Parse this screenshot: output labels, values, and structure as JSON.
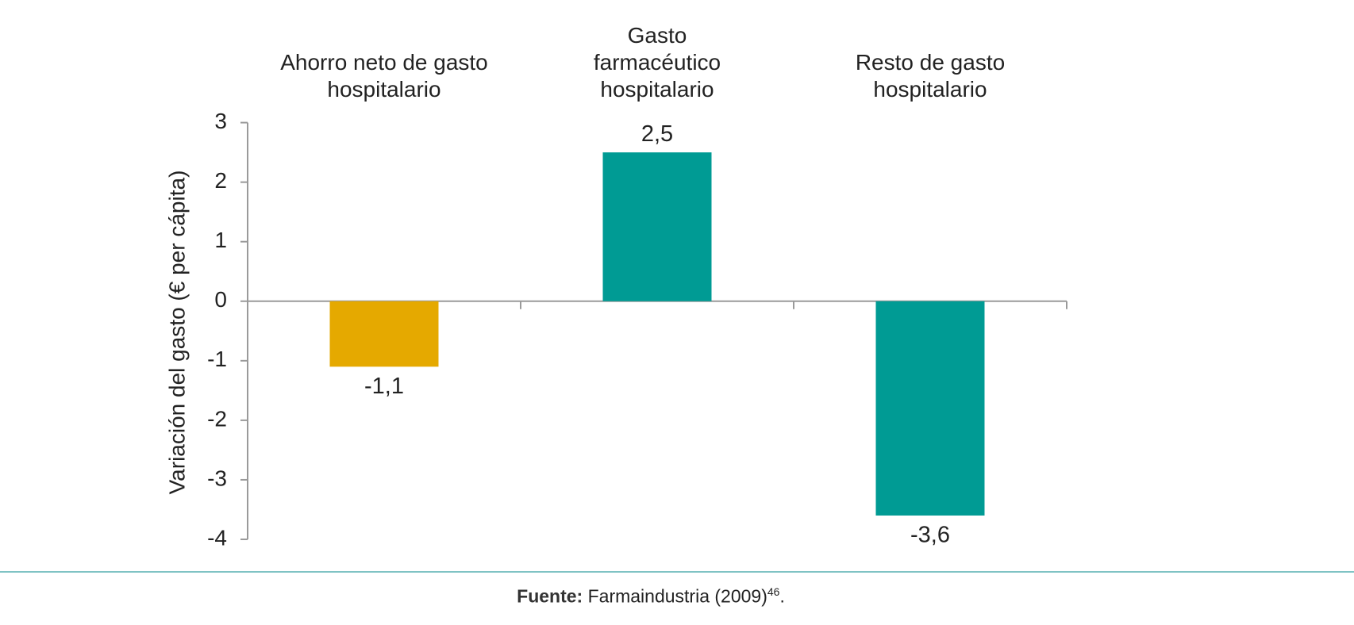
{
  "chart_data": {
    "type": "bar",
    "categories": [
      "Ahorro neto de gasto hospitalario",
      "Gasto farmacéutico hospitalario",
      "Resto de gasto hospitalario"
    ],
    "values": [
      -1.1,
      2.5,
      -3.6
    ],
    "value_labels": [
      "-1,1",
      "2,5",
      "-3,6"
    ],
    "colors": [
      "#e5a900",
      "#009b94",
      "#009b94"
    ],
    "y_label": "Variación del gasto (€ per cápita)",
    "ylim": [
      -4,
      3
    ],
    "yticks": [
      -4,
      -3,
      -2,
      -1,
      0,
      1,
      2,
      3
    ],
    "grid": false
  },
  "source": {
    "label": "Fuente:",
    "text": "Farmaindustria (2009)",
    "ref": "46",
    "end": "."
  }
}
